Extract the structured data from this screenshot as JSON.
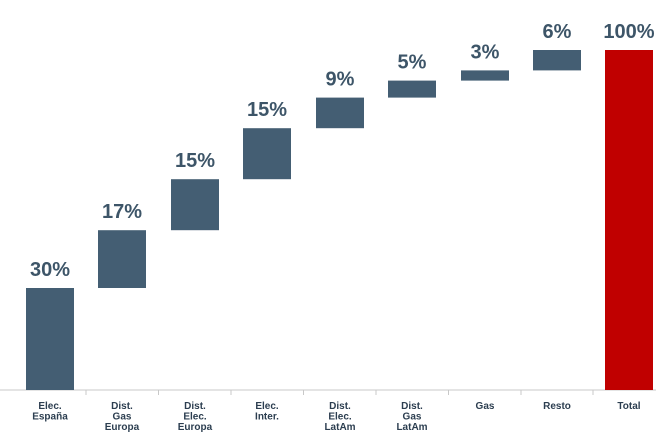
{
  "chart_data": {
    "type": "bar",
    "subtype": "waterfall",
    "categories": [
      [
        "Elec.",
        "España"
      ],
      [
        "Dist.",
        "Gas",
        "Europa"
      ],
      [
        "Dist.",
        "Elec.",
        "Europa"
      ],
      [
        "Elec.",
        "Inter."
      ],
      [
        "Dist.",
        "Elec.",
        "LatAm"
      ],
      [
        "Dist.",
        "Gas",
        "LatAm"
      ],
      [
        "Gas"
      ],
      [
        "Resto"
      ],
      [
        "Total"
      ]
    ],
    "values": [
      30,
      17,
      15,
      15,
      9,
      5,
      3,
      6,
      100
    ],
    "value_labels": [
      "30%",
      "17%",
      "15%",
      "15%",
      "9%",
      "5%",
      "3%",
      "6%",
      "100%"
    ],
    "is_total": [
      false,
      false,
      false,
      false,
      false,
      false,
      false,
      false,
      true
    ],
    "ylim": [
      0,
      100
    ],
    "title": "",
    "xlabel": "",
    "ylabel": "",
    "grid": false,
    "legend": "none",
    "colors": {
      "increment": "#445e73",
      "total": "#c00000",
      "axis": "#c8c8c8",
      "value_text": "#3d5568",
      "category_text": "#2c3e50"
    }
  }
}
